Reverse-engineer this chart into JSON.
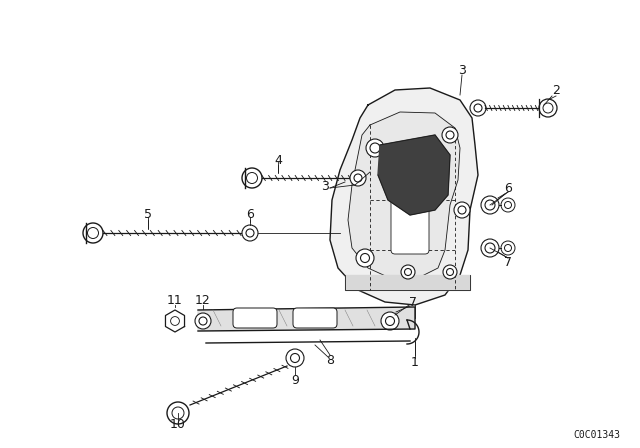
{
  "bg_color": "#ffffff",
  "line_color": "#1a1a1a",
  "diagram_id": "C0C01343",
  "fig_w": 6.4,
  "fig_h": 4.48,
  "dpi": 100
}
